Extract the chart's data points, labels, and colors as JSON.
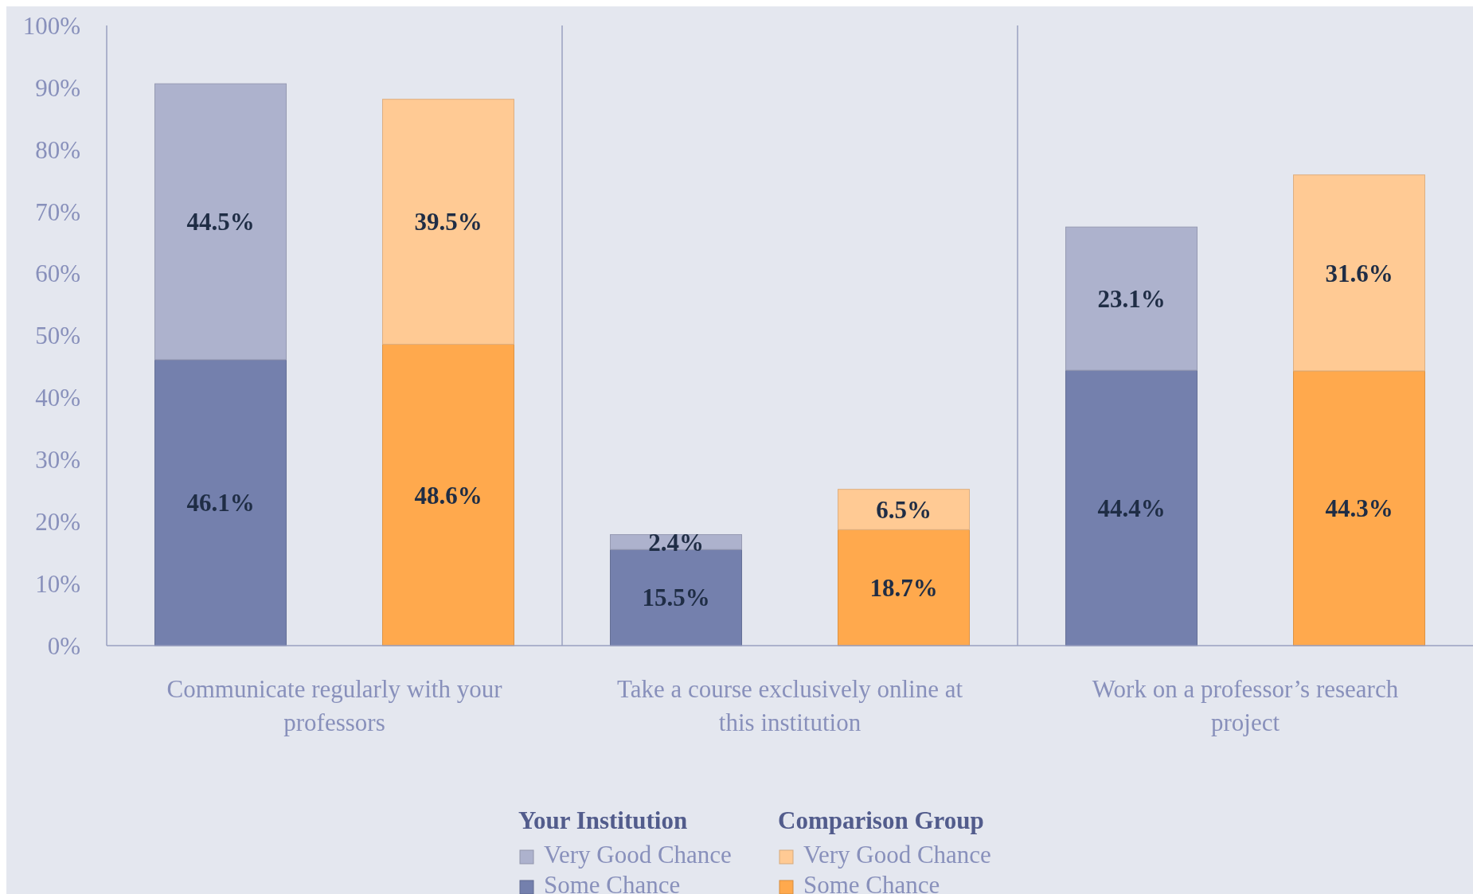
{
  "chart_data": {
    "type": "bar",
    "stacked": true,
    "categories": [
      "Communicate regularly with your professors",
      null,
      "Take a course exclusively online at this institution",
      null,
      "Work on a professor’s research project",
      null
    ],
    "legend_title": [
      "Your Institution",
      "Comparison Group"
    ],
    "series": [
      {
        "name": "Some Chance",
        "colors": [
          "#7480ad",
          "#ffa94d",
          "#7480ad",
          "#ffa94d",
          "#7480ad",
          "#ffa94d"
        ],
        "values": [
          46.1,
          48.6,
          15.5,
          18.7,
          44.4,
          44.3
        ]
      },
      {
        "name": "Very Good Chance",
        "colors": [
          "#adb2cd",
          "#ffca94",
          "#adb2cd",
          "#ffca94",
          "#adb2cd",
          "#ffca94"
        ],
        "values": [
          44.5,
          39.5,
          2.4,
          6.5,
          23.1,
          31.6
        ]
      }
    ],
    "ylim": [
      0,
      100
    ],
    "yticks": [
      {
        "value": 0,
        "label": "0%"
      },
      {
        "value": 10,
        "label": "10%"
      },
      {
        "value": 20,
        "label": "20%"
      },
      {
        "value": 30,
        "label": "30%"
      },
      {
        "value": 40,
        "label": "40%"
      },
      {
        "value": 50,
        "label": "50%"
      },
      {
        "value": 60,
        "label": "60%"
      },
      {
        "value": 70,
        "label": "70%"
      },
      {
        "value": 80,
        "label": "80%"
      },
      {
        "value": 90,
        "label": "90%"
      },
      {
        "value": 100,
        "label": "100%"
      }
    ],
    "value_labels": [
      [
        "46.1%",
        "48.6%",
        "15.5%",
        "18.7%",
        "44.4%",
        "44.3%"
      ],
      [
        "44.5%",
        "39.5%",
        "2.4%",
        "6.5%",
        "23.1%",
        "31.6%"
      ]
    ],
    "grid": "x",
    "legend": "bottom"
  }
}
